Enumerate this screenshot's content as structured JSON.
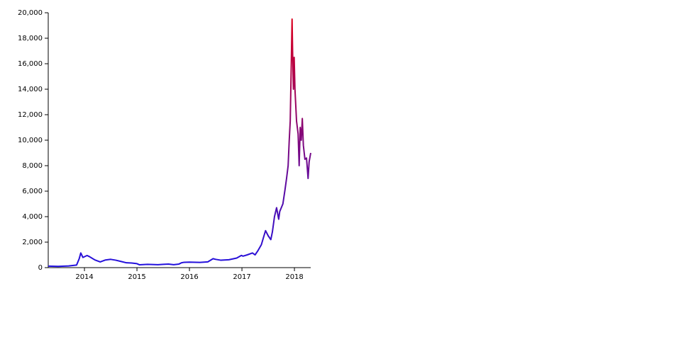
{
  "chart_data": {
    "type": "line",
    "x": [
      2013.31,
      2013.5,
      2013.7,
      2013.85,
      2013.9,
      2013.93,
      2013.97,
      2014.05,
      2014.1,
      2014.2,
      2014.3,
      2014.4,
      2014.5,
      2014.6,
      2014.7,
      2014.8,
      2014.9,
      2015.0,
      2015.05,
      2015.2,
      2015.4,
      2015.5,
      2015.6,
      2015.7,
      2015.8,
      2015.85,
      2015.9,
      2016.0,
      2016.2,
      2016.35,
      2016.45,
      2016.5,
      2016.6,
      2016.75,
      2016.9,
      2016.99,
      2017.02,
      2017.1,
      2017.2,
      2017.25,
      2017.3,
      2017.37,
      2017.42,
      2017.45,
      2017.5,
      2017.55,
      2017.58,
      2017.62,
      2017.66,
      2017.7,
      2017.72,
      2017.78,
      2017.82,
      2017.85,
      2017.88,
      2017.9,
      2017.92,
      2017.94,
      2017.955,
      2017.965,
      2017.98,
      2017.995,
      2018.01,
      2018.04,
      2018.07,
      2018.09,
      2018.11,
      2018.13,
      2018.15,
      2018.17,
      2018.2,
      2018.23,
      2018.26,
      2018.28,
      2018.31
    ],
    "values": [
      120,
      100,
      130,
      200,
      700,
      1150,
      800,
      950,
      850,
      600,
      450,
      600,
      650,
      580,
      480,
      380,
      360,
      310,
      220,
      260,
      230,
      260,
      280,
      230,
      280,
      380,
      420,
      430,
      410,
      450,
      700,
      650,
      580,
      620,
      750,
      960,
      900,
      1000,
      1150,
      1000,
      1300,
      1800,
      2500,
      2900,
      2500,
      2200,
      2800,
      4000,
      4700,
      3800,
      4400,
      5000,
      6100,
      7000,
      8000,
      9900,
      11500,
      16000,
      19500,
      17000,
      14000,
      16500,
      14000,
      11500,
      10500,
      8000,
      11000,
      10000,
      11700,
      9600,
      8500,
      8600,
      7000,
      8300,
      9000
    ],
    "xlim": [
      2013.31,
      2018.31
    ],
    "xticks": [
      2014,
      2015,
      2016,
      2017,
      2018
    ],
    "ylim": [
      0,
      20000
    ],
    "yticks": [
      0,
      {
        "value": 2000,
        "label": "2,000"
      },
      {
        "value": 4000,
        "label": "4,000"
      },
      {
        "value": 6000,
        "label": "6,000"
      },
      {
        "value": 8000,
        "label": "8,000"
      },
      {
        "value": 10000,
        "label": "10,000"
      },
      {
        "value": 12000,
        "label": "12,000"
      },
      {
        "value": 14000,
        "label": "14,000"
      },
      {
        "value": 16000,
        "label": "16,000"
      },
      {
        "value": 18000,
        "label": "18,000"
      },
      {
        "value": 20000,
        "label": "20,000"
      }
    ],
    "color_low": "#2010e0",
    "color_high": "#e0001a"
  }
}
